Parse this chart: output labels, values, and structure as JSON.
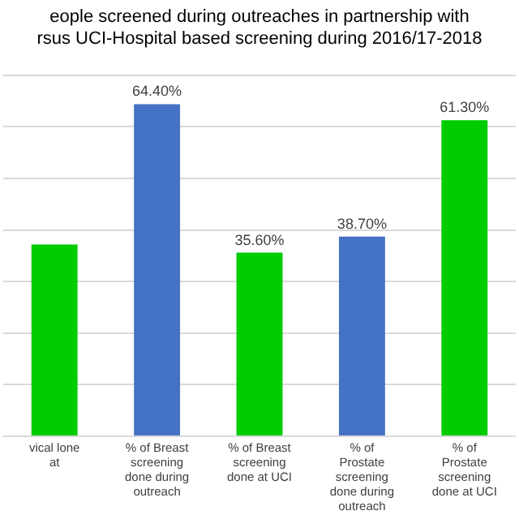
{
  "chart_data": {
    "type": "bar",
    "title": "eople screened during outreaches in partnership with\nrsus UCI-Hospital based screening during 2016/17-2018",
    "categories": [
      "vical lone at",
      "% of Breast screening done during outreach",
      "% of Breast screening done at UCI",
      "% of Prostate screening done during outreach",
      "% of Prostate screening done at UCI"
    ],
    "values": [
      37.2,
      64.4,
      35.6,
      38.7,
      61.3
    ],
    "colors": [
      "#00cc00",
      "#4472c4",
      "#00cc00",
      "#4472c4",
      "#00cc00"
    ],
    "value_labels": [
      null,
      "64.40%",
      "35.60%",
      "38.70%",
      "61.30%"
    ],
    "ylim": [
      0,
      70
    ],
    "yticks": [
      {
        "value": 0,
        "label": null
      },
      {
        "value": 10,
        "label": null
      },
      {
        "value": 20,
        "label": null
      },
      {
        "value": 30,
        "label": null
      },
      {
        "value": 40,
        "label": null
      },
      {
        "value": 50,
        "label": null
      },
      {
        "value": 60,
        "label": null
      },
      {
        "value": 70,
        "label": null
      }
    ],
    "grid": "y",
    "tick_labels": "x",
    "legend": false
  }
}
